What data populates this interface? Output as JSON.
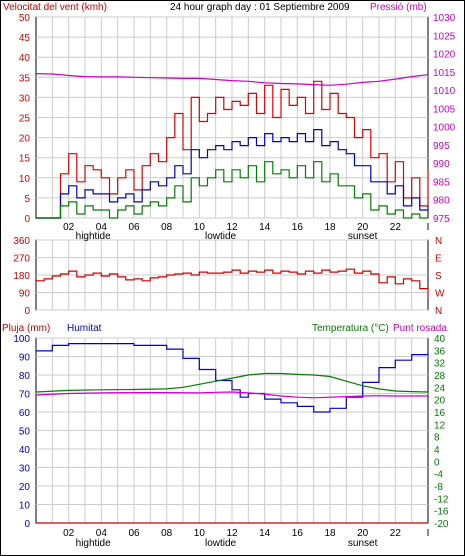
{
  "header": {
    "wind_label": "Velocitat del vent (kmh)",
    "title": "24 hour graph day : 01 Septiembre 2009",
    "pressure_label": "Pressió (mb)"
  },
  "colors": {
    "wind_gust": "#e00000",
    "wind_avg": "#0000cc",
    "wind_min": "#008000",
    "pressure": "#cc00cc",
    "direction": "#cc0000",
    "humidity": "#0000cc",
    "temperature": "#008000",
    "dewpoint": "#cc00cc",
    "rain": "#cc0000",
    "grid": "#cccccc",
    "frame": "#000000"
  },
  "chart_data": [
    {
      "type": "line",
      "name": "wind-and-pressure",
      "xlim": [
        0,
        24
      ],
      "x_ticks": [
        "02",
        "04",
        "06",
        "08",
        "10",
        "12",
        "14",
        "16",
        "18",
        "20",
        "22",
        "I"
      ],
      "x_annotations": [
        {
          "label": "hightide",
          "x": 3.5
        },
        {
          "label": "lowtide",
          "x": 11.3
        },
        {
          "label": "sunset",
          "x": 20.0
        }
      ],
      "y_left": {
        "label": "Velocitat del vent (kmh)",
        "ylim": [
          0,
          50
        ],
        "ticks": [
          0,
          5,
          10,
          15,
          20,
          25,
          30,
          35,
          40,
          45,
          50
        ]
      },
      "y_right": {
        "label": "Pressió (mb)",
        "ylim": [
          975,
          1030
        ],
        "ticks": [
          975,
          980,
          985,
          990,
          995,
          1000,
          1005,
          1010,
          1015,
          1020,
          1025,
          1030
        ]
      },
      "series": [
        {
          "axis": "right",
          "color": "#cc00cc",
          "x": [
            0,
            1,
            2,
            3,
            4,
            5,
            6,
            7,
            8,
            9,
            10,
            11,
            12,
            13,
            14,
            15,
            16,
            17,
            18,
            19,
            20,
            21,
            22,
            23,
            24
          ],
          "values": [
            1014.5,
            1014.4,
            1014.0,
            1013.7,
            1013.6,
            1013.6,
            1013.5,
            1013.4,
            1013.3,
            1013.2,
            1013.2,
            1012.9,
            1012.6,
            1012.4,
            1012.0,
            1011.8,
            1011.7,
            1011.5,
            1011.3,
            1011.6,
            1012.1,
            1012.4,
            1013.0,
            1013.7,
            1014.2
          ]
        },
        {
          "axis": "left",
          "color": "#e00000",
          "x": [
            0,
            1,
            1.5,
            2,
            2.5,
            3,
            3.5,
            4,
            4.5,
            5,
            5.5,
            6,
            6.5,
            7,
            7.5,
            8,
            8.5,
            9,
            9.5,
            10,
            10.5,
            11,
            11.5,
            12,
            12.5,
            13,
            13.5,
            14,
            14.5,
            15,
            15.5,
            16,
            16.5,
            17,
            17.5,
            18,
            18.5,
            19,
            19.5,
            20,
            20.5,
            21,
            21.5,
            22,
            22.5,
            23,
            23.5,
            24
          ],
          "values": [
            0,
            0,
            11,
            16,
            9,
            13,
            12,
            10,
            6,
            10,
            12,
            7,
            13,
            16,
            14,
            20,
            26,
            17,
            30,
            24,
            26,
            30,
            27,
            29,
            28,
            31,
            26,
            33,
            25,
            32,
            28,
            30,
            26,
            34,
            27,
            31,
            26,
            25,
            20,
            22,
            15,
            16,
            9,
            14,
            5,
            10,
            3,
            12
          ]
        },
        {
          "axis": "left",
          "color": "#0000cc",
          "x": [
            0,
            1,
            1.5,
            2,
            2.5,
            3,
            3.5,
            4,
            4.5,
            5,
            5.5,
            6,
            6.5,
            7,
            7.5,
            8,
            8.5,
            9,
            9.5,
            10,
            10.5,
            11,
            11.5,
            12,
            12.5,
            13,
            13.5,
            14,
            14.5,
            15,
            15.5,
            16,
            16.5,
            17,
            17.5,
            18,
            18.5,
            19,
            19.5,
            20,
            20.5,
            21,
            21.5,
            22,
            22.5,
            23,
            23.5,
            24
          ],
          "values": [
            0,
            0,
            6,
            8,
            5,
            7,
            6,
            6,
            4,
            5,
            6,
            4,
            7,
            9,
            8,
            10,
            13,
            11,
            17,
            15,
            17,
            18,
            17,
            19,
            18,
            20,
            18,
            21,
            19,
            20,
            19,
            21,
            19,
            22,
            18,
            19,
            17,
            16,
            13,
            13,
            9,
            9,
            6,
            8,
            3,
            5,
            2,
            3
          ]
        },
        {
          "axis": "left",
          "color": "#008000",
          "x": [
            0,
            1,
            1.5,
            2,
            2.5,
            3,
            3.5,
            4,
            4.5,
            5,
            5.5,
            6,
            6.5,
            7,
            7.5,
            8,
            8.5,
            9,
            9.5,
            10,
            10.5,
            11,
            11.5,
            12,
            12.5,
            13,
            13.5,
            14,
            14.5,
            15,
            15.5,
            16,
            16.5,
            17,
            17.5,
            18,
            18.5,
            19,
            19.5,
            20,
            20.5,
            21,
            21.5,
            22,
            22.5,
            23,
            23.5,
            24
          ],
          "values": [
            0,
            0,
            3,
            4,
            1,
            3,
            2,
            2,
            0,
            2,
            3,
            1,
            3,
            4,
            3,
            5,
            8,
            4,
            10,
            8,
            10,
            12,
            9,
            12,
            10,
            13,
            9,
            14,
            11,
            12,
            10,
            13,
            10,
            14,
            9,
            11,
            8,
            8,
            5,
            6,
            2,
            3,
            1,
            2,
            0,
            1,
            0,
            0
          ]
        }
      ]
    },
    {
      "type": "line",
      "name": "wind-direction",
      "xlim": [
        0,
        24
      ],
      "y_left": {
        "ylim": [
          0,
          360
        ],
        "ticks": [
          0,
          90,
          180,
          270,
          360
        ]
      },
      "y_right_labels": [
        "N",
        "W",
        "S",
        "E",
        "N"
      ],
      "series": [
        {
          "axis": "left",
          "color": "#cc0000",
          "x": [
            0,
            0.5,
            1,
            1.5,
            2,
            2.5,
            3,
            3.5,
            4,
            4.5,
            5,
            5.5,
            6,
            6.5,
            7,
            7.5,
            8,
            8.5,
            9,
            9.5,
            10,
            10.5,
            11,
            11.5,
            12,
            12.5,
            13,
            13.5,
            14,
            14.5,
            15,
            15.5,
            16,
            16.5,
            17,
            17.5,
            18,
            18.5,
            19,
            19.5,
            20,
            20.5,
            21,
            21.5,
            22,
            22.5,
            23,
            23.5,
            24
          ],
          "values": [
            150,
            160,
            175,
            185,
            200,
            170,
            180,
            190,
            175,
            185,
            170,
            155,
            160,
            150,
            165,
            170,
            180,
            185,
            190,
            180,
            195,
            190,
            190,
            195,
            205,
            190,
            200,
            195,
            205,
            190,
            200,
            195,
            185,
            200,
            190,
            205,
            195,
            200,
            210,
            190,
            200,
            185,
            140,
            170,
            135,
            160,
            150,
            110,
            60
          ]
        }
      ]
    },
    {
      "type": "line",
      "name": "rain-humidity-temperature",
      "xlim": [
        0,
        24
      ],
      "y_axes": [
        {
          "label": "Pluja (mm)",
          "ylim": [
            0,
            100
          ],
          "ticks": [
            0,
            10,
            20,
            30,
            40,
            50,
            60,
            70,
            80,
            90,
            100
          ]
        },
        {
          "label": "Humitat",
          "ylim": [
            0,
            100
          ],
          "ticks": [
            0,
            10,
            20,
            30,
            40,
            50,
            60,
            70,
            80,
            90,
            100
          ]
        },
        {
          "label": "Temperatura (°C)",
          "ylim": [
            -20,
            40
          ],
          "ticks": [
            -20,
            -16,
            -12,
            -8,
            -4,
            0,
            4,
            8,
            12,
            16,
            20,
            24,
            28,
            32,
            36,
            40
          ]
        }
      ],
      "left_tick_labels": [
        "0",
        "10",
        "20",
        "30",
        "40",
        "50",
        "60",
        "70",
        "80",
        "90",
        "100"
      ],
      "right_tick_labels": [
        "-20",
        "-16",
        "-12",
        "-8",
        "-4",
        "0",
        "4",
        "8",
        "12",
        "16",
        "20",
        "24",
        "28",
        "32",
        "36",
        "40"
      ],
      "right_label": "Temperatura (°C)",
      "dewpoint_label": "Punt rosada",
      "rain_label": "Pluja (mm)",
      "humidity_label": "Humitat",
      "x_ticks": [
        "02",
        "04",
        "06",
        "08",
        "10",
        "12",
        "14",
        "16",
        "18",
        "20",
        "22",
        "I"
      ],
      "x_annotations": [
        {
          "label": "hightide",
          "x": 3.5
        },
        {
          "label": "lowtide",
          "x": 11.3
        },
        {
          "label": "sunset",
          "x": 20.0
        }
      ],
      "series": [
        {
          "name": "Humitat",
          "axis": "humidity",
          "color": "#0000cc",
          "x": [
            0,
            1,
            2,
            3,
            4,
            5,
            6,
            7,
            8,
            9,
            10,
            11,
            12,
            12.5,
            13,
            14,
            15,
            16,
            17,
            18,
            19,
            20,
            21,
            22,
            23,
            24
          ],
          "values": [
            93,
            96,
            97,
            97,
            97,
            97,
            96,
            96,
            94,
            89,
            83,
            77,
            72,
            68,
            70,
            67,
            65,
            63,
            60,
            62,
            68,
            76,
            84,
            88,
            91,
            92
          ]
        },
        {
          "name": "Temperatura (°C)",
          "axis": "temperature",
          "color": "#008000",
          "x": [
            0,
            2,
            4,
            6,
            8,
            9,
            10,
            11,
            12,
            13,
            14,
            15,
            16,
            17,
            18,
            19,
            20,
            21,
            22,
            23,
            24
          ],
          "values": [
            22.5,
            23,
            23.2,
            23.3,
            23.5,
            24,
            25,
            26,
            27,
            28,
            28.5,
            28.5,
            28.2,
            28,
            27.5,
            26,
            24.5,
            23.5,
            22.8,
            22.6,
            22.5
          ]
        },
        {
          "name": "Punt rosada",
          "axis": "temperature",
          "color": "#cc00cc",
          "x": [
            0,
            2,
            4,
            6,
            8,
            10,
            11,
            12,
            13,
            14,
            15,
            16,
            17,
            18,
            19,
            20,
            21,
            22,
            23,
            24
          ],
          "values": [
            21.5,
            22,
            22.2,
            22.3,
            22.3,
            22.2,
            22.4,
            22.5,
            22.2,
            21.8,
            21.2,
            20.8,
            20.6,
            20.8,
            21,
            21.2,
            21.3,
            21.2,
            21.2,
            21.2
          ]
        },
        {
          "name": "Pluja (mm)",
          "axis": "rain",
          "color": "#cc0000",
          "x": [
            0,
            24
          ],
          "values": [
            0,
            0
          ]
        }
      ]
    }
  ]
}
